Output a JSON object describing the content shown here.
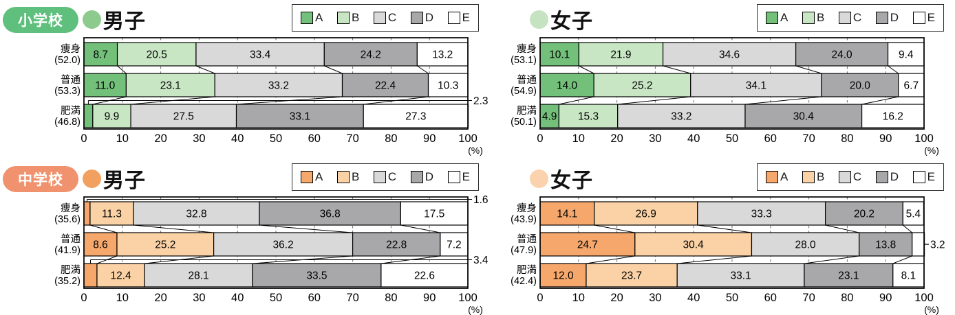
{
  "legend": {
    "labels": [
      "A",
      "B",
      "C",
      "D",
      "E"
    ]
  },
  "colors": {
    "green_segments": [
      "#73c07a",
      "#c9e6c4",
      "#d9d9da",
      "#a8a8aa",
      "#ffffff"
    ],
    "orange_segments": [
      "#f6a76b",
      "#fbd2a6",
      "#d9d9da",
      "#a8a8aa",
      "#ffffff"
    ],
    "badge_green": "#5fbf7d",
    "badge_orange": "#f0926e",
    "grid": "#6e6e6e",
    "frame": "#000000"
  },
  "chart_data": [
    {
      "type": "bar",
      "stacked": true,
      "orientation": "horizontal",
      "badge": "小学校",
      "title": "男子",
      "theme": "green",
      "bullet_color": "#8cca8e",
      "categories": [
        "痩身",
        "普通",
        "肥満"
      ],
      "category_sublabels": [
        "(52.0)",
        "(53.3)",
        "(46.8)"
      ],
      "series": [
        {
          "name": "A",
          "values": [
            8.7,
            11.0,
            2.3
          ]
        },
        {
          "name": "B",
          "values": [
            20.5,
            23.1,
            9.9
          ]
        },
        {
          "name": "C",
          "values": [
            33.4,
            33.2,
            27.5
          ]
        },
        {
          "name": "D",
          "values": [
            24.2,
            22.4,
            33.1
          ]
        },
        {
          "name": "E",
          "values": [
            13.2,
            10.3,
            27.3
          ]
        }
      ],
      "xlim": [
        0,
        100
      ],
      "xticks": [
        0,
        10,
        20,
        30,
        40,
        50,
        60,
        70,
        80,
        90,
        100
      ],
      "x_unit": "(%)",
      "callouts": [
        {
          "category": 2,
          "series": 0,
          "text": "2.3",
          "anchor": "gap-above"
        }
      ]
    },
    {
      "type": "bar",
      "stacked": true,
      "orientation": "horizontal",
      "badge": null,
      "title": "女子",
      "theme": "green",
      "bullet_color": "#c5e3c1",
      "categories": [
        "痩身",
        "普通",
        "肥満"
      ],
      "category_sublabels": [
        "(53.1)",
        "(54.9)",
        "(50.1)"
      ],
      "series": [
        {
          "name": "A",
          "values": [
            10.1,
            14.0,
            4.9
          ]
        },
        {
          "name": "B",
          "values": [
            21.9,
            25.2,
            15.3
          ]
        },
        {
          "name": "C",
          "values": [
            34.6,
            34.1,
            33.2
          ]
        },
        {
          "name": "D",
          "values": [
            24.0,
            20.0,
            30.4
          ]
        },
        {
          "name": "E",
          "values": [
            9.4,
            6.7,
            16.2
          ]
        }
      ],
      "xlim": [
        0,
        100
      ],
      "xticks": [
        0,
        10,
        20,
        30,
        40,
        50,
        60,
        70,
        80,
        90,
        100
      ],
      "x_unit": "(%)",
      "callouts": []
    },
    {
      "type": "bar",
      "stacked": true,
      "orientation": "horizontal",
      "badge": "中学校",
      "title": "男子",
      "theme": "orange",
      "bullet_color": "#f2a05f",
      "categories": [
        "痩身",
        "普通",
        "肥満"
      ],
      "category_sublabels": [
        "(35.6)",
        "(41.9)",
        "(35.2)"
      ],
      "series": [
        {
          "name": "A",
          "values": [
            1.6,
            8.6,
            3.4
          ]
        },
        {
          "name": "B",
          "values": [
            11.3,
            25.2,
            12.4
          ]
        },
        {
          "name": "C",
          "values": [
            32.8,
            36.2,
            28.1
          ]
        },
        {
          "name": "D",
          "values": [
            36.8,
            22.8,
            33.5
          ]
        },
        {
          "name": "E",
          "values": [
            17.5,
            7.2,
            22.6
          ]
        }
      ],
      "xlim": [
        0,
        100
      ],
      "xticks": [
        0,
        10,
        20,
        30,
        40,
        50,
        60,
        70,
        80,
        90,
        100
      ],
      "x_unit": "(%)",
      "callouts": [
        {
          "category": 0,
          "series": 0,
          "text": "1.6",
          "anchor": "gap-above"
        },
        {
          "category": 2,
          "series": 0,
          "text": "3.4",
          "anchor": "gap-above"
        }
      ]
    },
    {
      "type": "bar",
      "stacked": true,
      "orientation": "horizontal",
      "badge": null,
      "title": "女子",
      "theme": "orange",
      "bullet_color": "#fad3ae",
      "categories": [
        "痩身",
        "普通",
        "肥満"
      ],
      "category_sublabels": [
        "(43.9)",
        "(47.9)",
        "(42.4)"
      ],
      "series": [
        {
          "name": "A",
          "values": [
            14.1,
            24.7,
            12.0
          ]
        },
        {
          "name": "B",
          "values": [
            26.9,
            30.4,
            23.7
          ]
        },
        {
          "name": "C",
          "values": [
            33.3,
            28.0,
            33.1
          ]
        },
        {
          "name": "D",
          "values": [
            20.2,
            13.8,
            23.1
          ]
        },
        {
          "name": "E",
          "values": [
            5.4,
            3.2,
            8.1
          ]
        }
      ],
      "xlim": [
        0,
        100
      ],
      "xticks": [
        0,
        10,
        20,
        30,
        40,
        50,
        60,
        70,
        80,
        90,
        100
      ],
      "x_unit": "(%)",
      "callouts": [
        {
          "category": 1,
          "series": 4,
          "text": "3.2",
          "anchor": "row-center"
        }
      ]
    }
  ]
}
